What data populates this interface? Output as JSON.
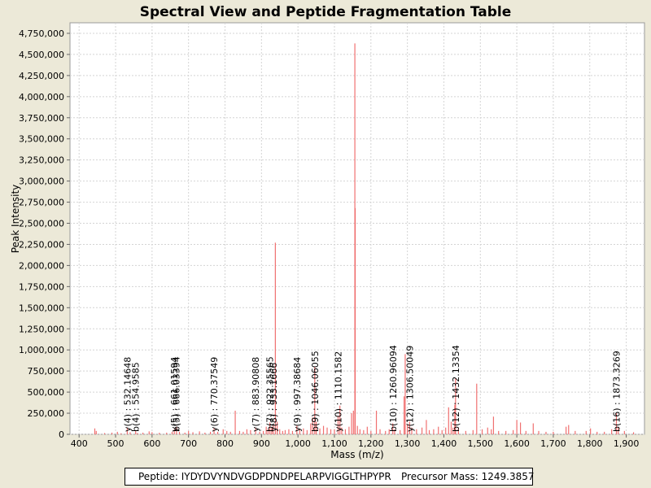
{
  "chart_data": {
    "type": "spectrum",
    "title": "Spectral View and Peptide Fragmentation Table",
    "xlabel": "Mass (m/z)",
    "ylabel": "Peak Intensity",
    "xlim": [
      375,
      1950
    ],
    "ylim": [
      0,
      4875000
    ],
    "xticks": [
      400,
      500,
      600,
      700,
      800,
      900,
      1000,
      1100,
      1200,
      1300,
      1400,
      1500,
      1600,
      1700,
      1800,
      1900
    ],
    "xtick_labels": [
      "400",
      "500",
      "600",
      "700",
      "800",
      "900",
      "1,000",
      "1,100",
      "1,200",
      "1,300",
      "1,400",
      "1,500",
      "1,600",
      "1,700",
      "1,800",
      "1,900"
    ],
    "yticks": [
      0,
      250000,
      500000,
      750000,
      1000000,
      1250000,
      1500000,
      1750000,
      2000000,
      2250000,
      2500000,
      2750000,
      3000000,
      3250000,
      3500000,
      3750000,
      4000000,
      4250000,
      4500000,
      4750000
    ],
    "ytick_labels": [
      "0",
      "250,000",
      "500,000",
      "750,000",
      "1,000,000",
      "1,250,000",
      "1,500,000",
      "1,750,000",
      "2,000,000",
      "2,250,000",
      "2,500,000",
      "2,750,000",
      "3,000,000",
      "3,250,000",
      "3,500,000",
      "3,750,000",
      "4,000,000",
      "4,250,000",
      "4,500,000",
      "4,750,000"
    ],
    "peak_color": "#f07070",
    "grid": true,
    "peaks": [
      [
        443,
        70000
      ],
      [
        447,
        40000
      ],
      [
        470,
        15000
      ],
      [
        490,
        20000
      ],
      [
        505,
        30000
      ],
      [
        515,
        12000
      ],
      [
        532,
        80000
      ],
      [
        540,
        25000
      ],
      [
        555,
        45000
      ],
      [
        560,
        15000
      ],
      [
        575,
        20000
      ],
      [
        592,
        35000
      ],
      [
        600,
        25000
      ],
      [
        620,
        18000
      ],
      [
        640,
        20000
      ],
      [
        655,
        30000
      ],
      [
        661,
        60000
      ],
      [
        667,
        90000
      ],
      [
        675,
        30000
      ],
      [
        690,
        20000
      ],
      [
        700,
        40000
      ],
      [
        712,
        25000
      ],
      [
        730,
        35000
      ],
      [
        745,
        20000
      ],
      [
        760,
        30000
      ],
      [
        770,
        70000
      ],
      [
        780,
        30000
      ],
      [
        795,
        60000
      ],
      [
        805,
        40000
      ],
      [
        815,
        30000
      ],
      [
        828,
        280000
      ],
      [
        840,
        40000
      ],
      [
        850,
        30000
      ],
      [
        860,
        60000
      ],
      [
        870,
        50000
      ],
      [
        884,
        80000
      ],
      [
        895,
        30000
      ],
      [
        905,
        40000
      ],
      [
        913,
        90000
      ],
      [
        918,
        60000
      ],
      [
        923,
        140000
      ],
      [
        928,
        80000
      ],
      [
        932,
        120000
      ],
      [
        938,
        2270000
      ],
      [
        943,
        150000
      ],
      [
        950,
        60000
      ],
      [
        958,
        40000
      ],
      [
        965,
        50000
      ],
      [
        975,
        60000
      ],
      [
        985,
        40000
      ],
      [
        997,
        100000
      ],
      [
        1005,
        60000
      ],
      [
        1015,
        70000
      ],
      [
        1025,
        50000
      ],
      [
        1035,
        130000
      ],
      [
        1040,
        200000
      ],
      [
        1046,
        800000
      ],
      [
        1050,
        150000
      ],
      [
        1060,
        70000
      ],
      [
        1070,
        100000
      ],
      [
        1080,
        80000
      ],
      [
        1090,
        60000
      ],
      [
        1100,
        60000
      ],
      [
        1110,
        220000
      ],
      [
        1115,
        340000
      ],
      [
        1120,
        80000
      ],
      [
        1130,
        60000
      ],
      [
        1140,
        90000
      ],
      [
        1147,
        250000
      ],
      [
        1152,
        280000
      ],
      [
        1156,
        4630000
      ],
      [
        1157,
        2680000
      ],
      [
        1163,
        100000
      ],
      [
        1170,
        60000
      ],
      [
        1180,
        50000
      ],
      [
        1190,
        90000
      ],
      [
        1200,
        40000
      ],
      [
        1215,
        280000
      ],
      [
        1225,
        60000
      ],
      [
        1240,
        40000
      ],
      [
        1250,
        60000
      ],
      [
        1260,
        130000
      ],
      [
        1265,
        60000
      ],
      [
        1280,
        50000
      ],
      [
        1291,
        450000
      ],
      [
        1294,
        950000
      ],
      [
        1300,
        120000
      ],
      [
        1306,
        150000
      ],
      [
        1312,
        80000
      ],
      [
        1325,
        60000
      ],
      [
        1340,
        80000
      ],
      [
        1352,
        170000
      ],
      [
        1360,
        50000
      ],
      [
        1372,
        60000
      ],
      [
        1385,
        90000
      ],
      [
        1395,
        50000
      ],
      [
        1405,
        80000
      ],
      [
        1413,
        320000
      ],
      [
        1420,
        150000
      ],
      [
        1425,
        80000
      ],
      [
        1430,
        350000
      ],
      [
        1432,
        660000
      ],
      [
        1440,
        80000
      ],
      [
        1460,
        40000
      ],
      [
        1480,
        50000
      ],
      [
        1490,
        600000
      ],
      [
        1505,
        60000
      ],
      [
        1520,
        80000
      ],
      [
        1530,
        60000
      ],
      [
        1536,
        210000
      ],
      [
        1550,
        40000
      ],
      [
        1570,
        40000
      ],
      [
        1590,
        50000
      ],
      [
        1600,
        170000
      ],
      [
        1610,
        140000
      ],
      [
        1625,
        40000
      ],
      [
        1645,
        130000
      ],
      [
        1660,
        40000
      ],
      [
        1680,
        30000
      ],
      [
        1700,
        30000
      ],
      [
        1735,
        90000
      ],
      [
        1742,
        110000
      ],
      [
        1760,
        40000
      ],
      [
        1790,
        40000
      ],
      [
        1802,
        70000
      ],
      [
        1820,
        30000
      ],
      [
        1840,
        30000
      ],
      [
        1860,
        60000
      ],
      [
        1873,
        250000
      ],
      [
        1878,
        90000
      ],
      [
        1895,
        40000
      ],
      [
        1920,
        25000
      ]
    ],
    "annotations": [
      {
        "label": "y(4) : 532.14648",
        "mz": 532.14648
      },
      {
        "label": "b(4) : 554.9585",
        "mz": 554.9585
      },
      {
        "label": "y(5) : 661.01594",
        "mz": 661.01594
      },
      {
        "label": "b(5) : 666.03394",
        "mz": 666.03394
      },
      {
        "label": "y(6) : 770.37549",
        "mz": 770.37549
      },
      {
        "label": "y(7) : 883.90808",
        "mz": 883.90808
      },
      {
        "label": "b(7) : 922.35565",
        "mz": 922.35565
      },
      {
        "label": "y(8) : 933.1666",
        "mz": 933.1666
      },
      {
        "label": "y(9) : 997.38684",
        "mz": 997.38684
      },
      {
        "label": "b(9) : 1046.06055",
        "mz": 1046.06055
      },
      {
        "label": "y(10) : 1110.1582",
        "mz": 1110.1582
      },
      {
        "label": "b(10) : 1260.96094",
        "mz": 1260.96094
      },
      {
        "label": "y(12) : 1306.50049",
        "mz": 1306.50049
      },
      {
        "label": "b(12) : 1432.13354",
        "mz": 1432.13354
      },
      {
        "label": "b(16) : 1873.3269",
        "mz": 1873.3269
      }
    ]
  },
  "info": {
    "peptide": "Peptide: IYDYDVYNDVGDPDNDPELARPVIGGLTHPYPR",
    "precursor": "Precursor Mass: 1249.3857"
  }
}
